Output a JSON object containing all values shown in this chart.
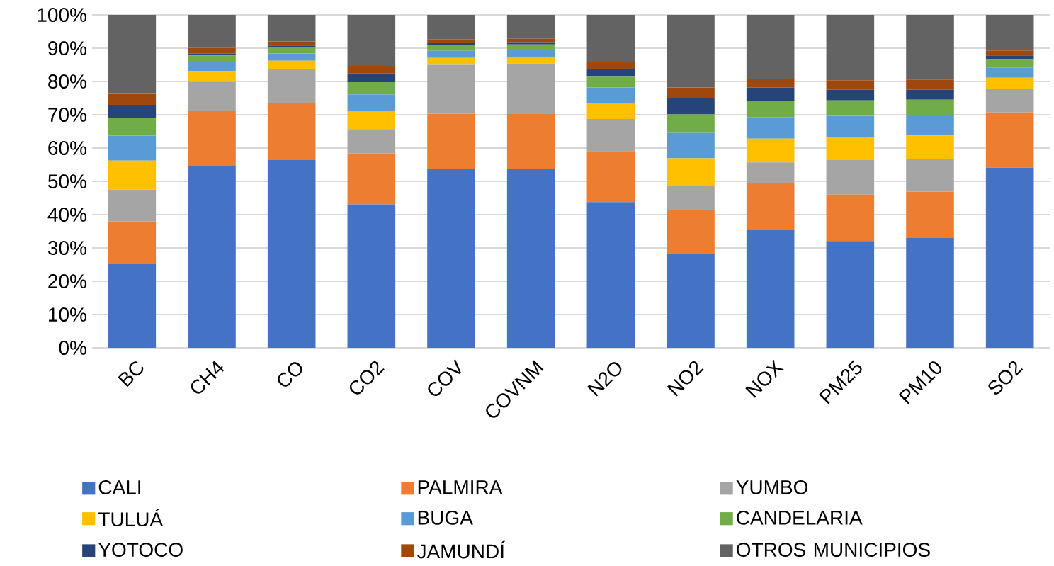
{
  "chart_data": {
    "type": "bar",
    "stacked": true,
    "categories": [
      "BC",
      "CH4",
      "CO",
      "CO2",
      "COV",
      "COVNM",
      "N2O",
      "NO2",
      "NOX",
      "PM25",
      "PM10",
      "SO2"
    ],
    "series": [
      {
        "name": "CALI",
        "color": "#4472c4",
        "values": [
          25.1,
          54.6,
          56.4,
          43.1,
          53.7,
          53.6,
          43.8,
          28.2,
          35.4,
          32.1,
          33.0,
          54.1
        ]
      },
      {
        "name": "PALMIRA",
        "color": "#ed7d31",
        "values": [
          12.9,
          16.7,
          17.1,
          15.3,
          16.6,
          16.6,
          15.3,
          13.2,
          14.2,
          13.9,
          13.9,
          16.6
        ]
      },
      {
        "name": "YUMBO",
        "color": "#a5a5a5",
        "values": [
          9.5,
          8.6,
          10.3,
          7.3,
          14.7,
          15.2,
          9.6,
          7.3,
          6.1,
          10.4,
          9.9,
          7.1
        ]
      },
      {
        "name": "TULUÁ",
        "color": "#ffc000",
        "values": [
          8.7,
          3.2,
          2.4,
          5.4,
          2.1,
          2.0,
          4.8,
          8.2,
          7.1,
          7.0,
          7.0,
          3.3
        ]
      },
      {
        "name": "BUGA",
        "color": "#5b9bd5",
        "values": [
          7.5,
          2.7,
          2.2,
          5.0,
          2.1,
          2.1,
          4.7,
          7.6,
          6.5,
          6.3,
          6.2,
          3.1
        ]
      },
      {
        "name": "CANDELARIA",
        "color": "#70ad47",
        "values": [
          5.4,
          2.0,
          1.8,
          3.7,
          1.7,
          1.6,
          3.4,
          5.6,
          4.8,
          4.6,
          4.5,
          2.5
        ]
      },
      {
        "name": "YOTOCO",
        "color": "#264478",
        "values": [
          3.9,
          0.6,
          0.6,
          2.6,
          0.7,
          0.7,
          2.2,
          5.0,
          4.1,
          3.2,
          3.0,
          1.1
        ]
      },
      {
        "name": "JAMUNDÍ",
        "color": "#9e480e",
        "values": [
          3.5,
          1.7,
          1.2,
          2.3,
          1.0,
          1.0,
          2.1,
          3.1,
          2.6,
          2.9,
          3.1,
          1.5
        ]
      },
      {
        "name": "OTROS MUNICIPIOS",
        "color": "#636363",
        "values": [
          23.5,
          9.9,
          8.0,
          15.3,
          7.4,
          7.2,
          14.1,
          21.8,
          19.2,
          19.6,
          19.4,
          10.7
        ]
      }
    ],
    "ylim": [
      0,
      100
    ],
    "yticks": [
      {
        "value": 0,
        "label": "0%"
      },
      {
        "value": 10,
        "label": "10%"
      },
      {
        "value": 20,
        "label": "20%"
      },
      {
        "value": 30,
        "label": "30%"
      },
      {
        "value": 40,
        "label": "40%"
      },
      {
        "value": 50,
        "label": "50%"
      },
      {
        "value": 60,
        "label": "60%"
      },
      {
        "value": 70,
        "label": "70%"
      },
      {
        "value": 80,
        "label": "80%"
      },
      {
        "value": 90,
        "label": "90%"
      },
      {
        "value": 100,
        "label": "100%"
      }
    ],
    "grid": "y",
    "legend": "bottom"
  }
}
